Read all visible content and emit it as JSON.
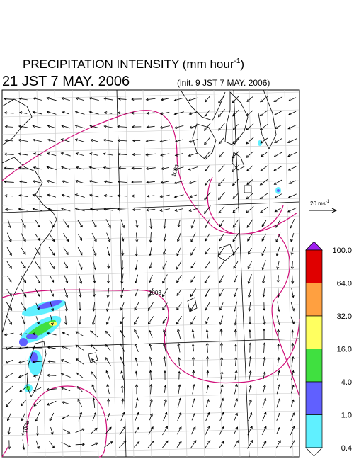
{
  "header": {
    "title": "PRECIPITATION INTENSITY (mm hour",
    "title_superscript": "-1",
    "title_close": ")",
    "valid_time": "21 JST 7 MAY. 2006",
    "init_time": "(init. 9 JST 7 MAY. 2006)"
  },
  "vector_legend": {
    "text": "20 ms",
    "superscript": "-1"
  },
  "colorbar": {
    "labels": [
      "100.0",
      "64.0",
      "32.0",
      "16.0",
      "4.0",
      "1.0",
      "0.4"
    ],
    "colors": [
      "#e00000",
      "#ffa040",
      "#ffff60",
      "#40e040",
      "#6060ff",
      "#60f0ff"
    ],
    "over_color": "#a020f0",
    "under_color": "#ffffff"
  },
  "contour_labels": [
    {
      "text": "1003",
      "angle": -70
    },
    {
      "text": "1003",
      "angle": 0
    },
    {
      "text": "1008",
      "angle": -80
    }
  ]
}
